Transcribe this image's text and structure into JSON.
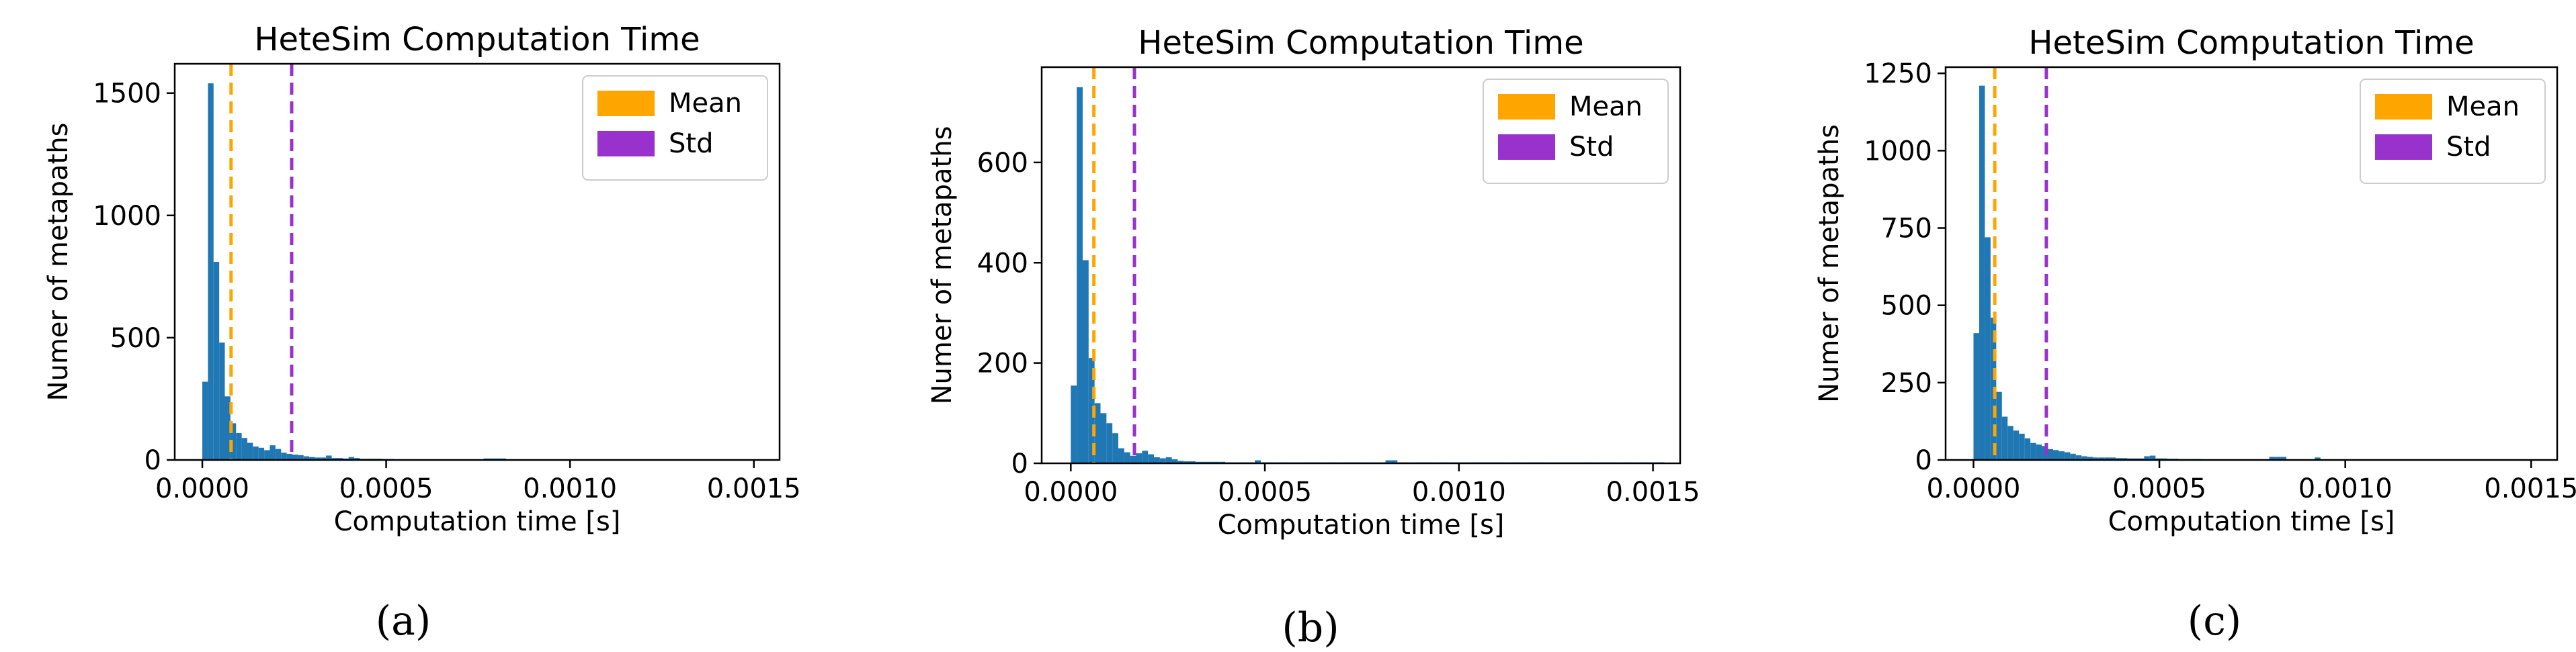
{
  "figure_captions": [
    "(a)",
    "(b)",
    "(c)"
  ],
  "colors": {
    "bars": "#1f77b4",
    "mean": "#ffa500",
    "std": "#9932cc"
  },
  "chart_data": [
    {
      "type": "bar",
      "title": "HeteSim Computation Time",
      "xlabel": "Computation time [s]",
      "ylabel": "Numer of metapaths",
      "xlim": [
        -7.5e-05,
        0.00157
      ],
      "ylim": [
        0,
        1620
      ],
      "xticks": [
        0.0,
        0.0005,
        0.001,
        0.0015
      ],
      "xtick_labels": [
        "0.0000",
        "0.0005",
        "0.0010",
        "0.0015"
      ],
      "yticks": [
        0,
        500,
        1000,
        1500
      ],
      "ytick_labels": [
        "0",
        "500",
        "1000",
        "1500"
      ],
      "bin_width": 1.53e-05,
      "x_start": 0.0,
      "values": [
        320,
        1540,
        810,
        480,
        260,
        150,
        110,
        90,
        70,
        55,
        50,
        40,
        60,
        45,
        30,
        25,
        22,
        20,
        15,
        12,
        10,
        10,
        18,
        8,
        8,
        6,
        12,
        8,
        5,
        5,
        5,
        5,
        4,
        4,
        3,
        3,
        3,
        3,
        2,
        2,
        2,
        2,
        2,
        2,
        2,
        2,
        2,
        2,
        2,
        2,
        6,
        6,
        6,
        6,
        2,
        2,
        2,
        2,
        2,
        2,
        2,
        2,
        2,
        2,
        2,
        2,
        2,
        2,
        2,
        2,
        2,
        2,
        2,
        2,
        2,
        2,
        2,
        2,
        2,
        2,
        2,
        2,
        2,
        2,
        2,
        2,
        2,
        2,
        2,
        2,
        2,
        2,
        2,
        2,
        2,
        2,
        2,
        2,
        2,
        2
      ],
      "mean": 7.82e-05,
      "std": 0.000243,
      "legend": {
        "position": "top-right",
        "entries": [
          "Mean",
          "Std"
        ]
      }
    },
    {
      "type": "bar",
      "title": "HeteSim Computation Time",
      "xlabel": "Computation time [s]",
      "ylabel": "Numer of metapaths",
      "xlim": [
        -7.5e-05,
        0.00157
      ],
      "ylim": [
        0,
        790
      ],
      "xticks": [
        0.0,
        0.0005,
        0.001,
        0.0015
      ],
      "xtick_labels": [
        "0.0000",
        "0.0005",
        "0.0010",
        "0.0015"
      ],
      "yticks": [
        0,
        200,
        400,
        600
      ],
      "ytick_labels": [
        "0",
        "200",
        "400",
        "600"
      ],
      "bin_width": 1.53e-05,
      "x_start": 0.0,
      "values": [
        155,
        750,
        405,
        210,
        120,
        100,
        80,
        60,
        30,
        22,
        15,
        20,
        25,
        18,
        12,
        10,
        12,
        8,
        5,
        4,
        4,
        3,
        3,
        3,
        3,
        3,
        2,
        2,
        2,
        2,
        2,
        6,
        2,
        2,
        2,
        2,
        2,
        2,
        2,
        2,
        2,
        2,
        2,
        2,
        2,
        2,
        2,
        2,
        2,
        2,
        2,
        2,
        2,
        6,
        6,
        2,
        2,
        2,
        2,
        2,
        2,
        2,
        2,
        2,
        2,
        2,
        2,
        2,
        2,
        2,
        2,
        2,
        2,
        2,
        2,
        2,
        2,
        2,
        2,
        2,
        2,
        2,
        2,
        2,
        2,
        2,
        2,
        2,
        2,
        2,
        2,
        2,
        2,
        2,
        2,
        2,
        2,
        2,
        2,
        2
      ],
      "mean": 5.95e-05,
      "std": 0.000164,
      "legend": {
        "position": "top-right",
        "entries": [
          "Mean",
          "Std"
        ]
      }
    },
    {
      "type": "bar",
      "title": "HeteSim Computation Time",
      "xlabel": "Computation time [s]",
      "ylabel": "Numer of metapaths",
      "xlim": [
        -7.5e-05,
        0.00157
      ],
      "ylim": [
        0,
        1270
      ],
      "xticks": [
        0.0,
        0.0005,
        0.001,
        0.0015
      ],
      "xtick_labels": [
        "0.0000",
        "0.0005",
        "0.0010",
        "0.0015"
      ],
      "yticks": [
        0,
        250,
        500,
        750,
        1000,
        1250
      ],
      "ytick_labels": [
        "0",
        "250",
        "500",
        "750",
        "1000",
        "1250"
      ],
      "bin_width": 1.53e-05,
      "x_start": 0.0,
      "values": [
        410,
        1210,
        720,
        460,
        220,
        140,
        110,
        95,
        85,
        70,
        55,
        50,
        45,
        35,
        32,
        28,
        25,
        20,
        15,
        12,
        10,
        8,
        8,
        8,
        8,
        6,
        6,
        5,
        5,
        5,
        12,
        14,
        5,
        5,
        4,
        4,
        3,
        3,
        3,
        3,
        2,
        2,
        2,
        2,
        2,
        2,
        2,
        2,
        2,
        2,
        2,
        2,
        10,
        10,
        10,
        2,
        2,
        2,
        2,
        2,
        8,
        2,
        2,
        2,
        2,
        2,
        2,
        2,
        2,
        2,
        2,
        2,
        2,
        2,
        2,
        2,
        2,
        2,
        2,
        2,
        2,
        2,
        2,
        2,
        2,
        2,
        2,
        2,
        2,
        2,
        2,
        2,
        2,
        2,
        2,
        2,
        2,
        2,
        2,
        2
      ],
      "mean": 5.72e-05,
      "std": 0.000196,
      "legend": {
        "position": "top-right",
        "entries": [
          "Mean",
          "Std"
        ]
      }
    }
  ]
}
